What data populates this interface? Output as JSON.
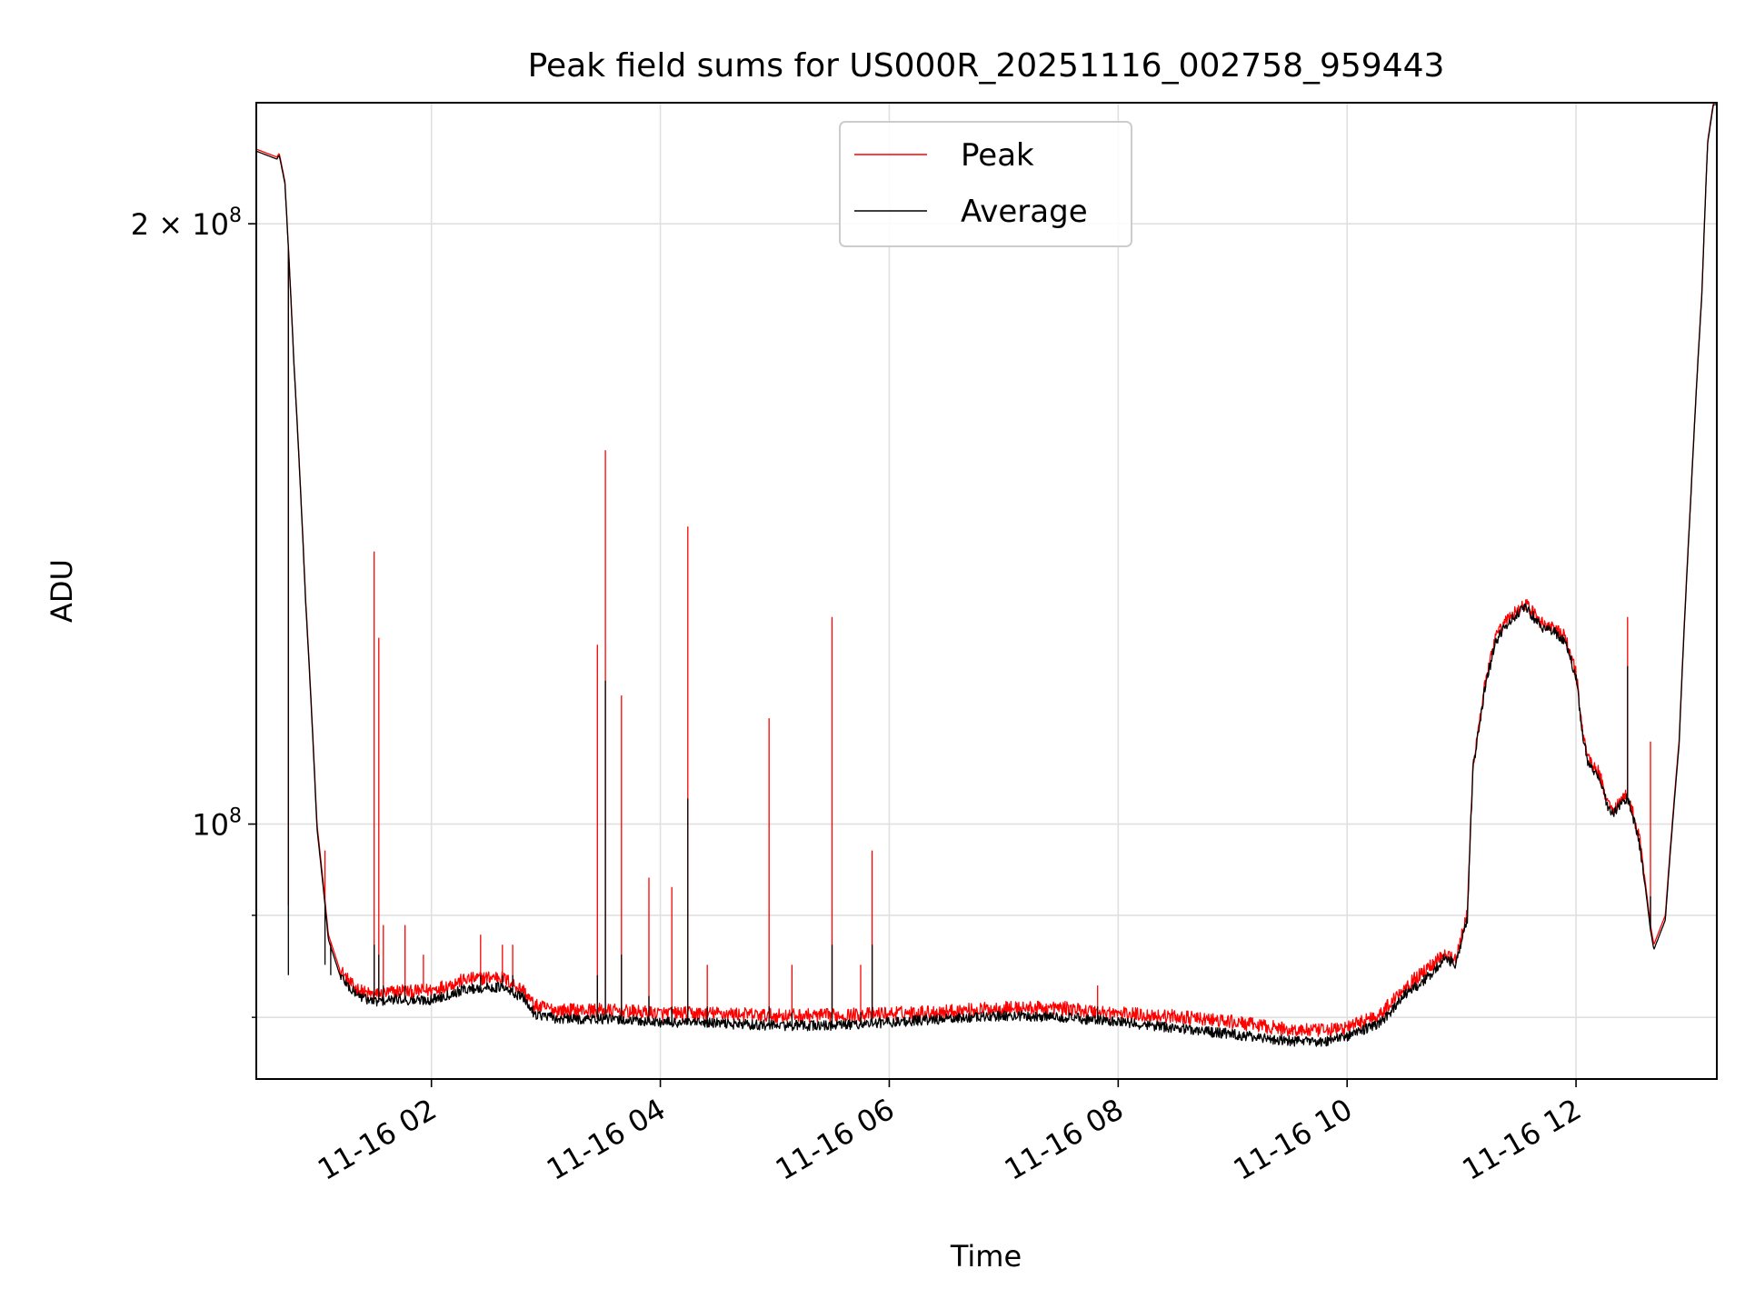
{
  "chart_data": {
    "type": "line",
    "title": "Peak field sums for US000R_20251116_002758_959443",
    "xlabel": "Time",
    "ylabel": "ADU",
    "yscale": "log",
    "x_unit": "hours since 11-16 00:00",
    "xlim": [
      0.47,
      13.23
    ],
    "ylim": [
      74500000.0,
      230000000.0
    ],
    "grid": true,
    "legend_position": "upper center",
    "x_ticks": [
      {
        "value": 2,
        "label": "11-16 02"
      },
      {
        "value": 4,
        "label": "11-16 04"
      },
      {
        "value": 6,
        "label": "11-16 06"
      },
      {
        "value": 8,
        "label": "11-16 08"
      },
      {
        "value": 10,
        "label": "11-16 10"
      },
      {
        "value": 12,
        "label": "11-16 12"
      }
    ],
    "y_major_ticks": [
      {
        "value": 100000000,
        "base": "10",
        "exponent": "8",
        "prefix": ""
      },
      {
        "value": 200000000,
        "base": "10",
        "exponent": "8",
        "prefix": "2 × "
      }
    ],
    "y_minor_ticks": [
      80000000,
      90000000
    ],
    "series": [
      {
        "name": "Peak",
        "color": "#ff0000",
        "x": [
          0.47,
          0.65,
          0.67,
          0.72,
          0.8,
          0.9,
          1.0,
          1.1,
          1.2,
          1.3,
          1.4,
          1.5,
          1.6,
          1.75,
          1.8,
          2.0,
          2.3,
          2.6,
          2.8,
          2.9,
          3.1,
          3.5,
          4.0,
          4.5,
          5.0,
          5.5,
          6.0,
          6.5,
          7.0,
          7.5,
          8.0,
          8.5,
          9.0,
          9.5,
          9.8,
          10.0,
          10.3,
          10.5,
          10.7,
          10.85,
          10.95,
          11.05,
          11.1,
          11.2,
          11.3,
          11.4,
          11.5,
          11.55,
          11.6,
          11.7,
          11.8,
          11.9,
          12.0,
          12.05,
          12.1,
          12.2,
          12.3,
          12.38,
          12.45,
          12.55,
          12.6,
          12.65,
          12.68,
          12.78,
          12.9,
          13.0,
          13.1,
          13.15,
          13.2,
          13.23
        ],
        "y": [
          218000000,
          216000000,
          217000000,
          210000000,
          170000000,
          130000000,
          100000000,
          88000000,
          84500000,
          83000000,
          82300000,
          82000000,
          82200000,
          82500000,
          82300000,
          82500000,
          83500000,
          83800000,
          82500000,
          81000000,
          80600000,
          80600000,
          80300000,
          80300000,
          80100000,
          80100000,
          80300000,
          80500000,
          80800000,
          80800000,
          80300000,
          80000000,
          79500000,
          78800000,
          78700000,
          79000000,
          80300000,
          82800000,
          84500000,
          86200000,
          85500000,
          90000000,
          107000000,
          117000000,
          124000000,
          126500000,
          128000000,
          129000000,
          128000000,
          126000000,
          125500000,
          124000000,
          119000000,
          112000000,
          108000000,
          106000000,
          101500000,
          102500000,
          103500000,
          98500000,
          94000000,
          89000000,
          87000000,
          90000000,
          110000000,
          145000000,
          185000000,
          220000000,
          230000000,
          230000000
        ]
      },
      {
        "name": "Average",
        "color": "#000000",
        "x": [
          0.47,
          0.65,
          0.67,
          0.72,
          0.8,
          0.9,
          1.0,
          1.1,
          1.2,
          1.3,
          1.4,
          1.5,
          1.6,
          1.75,
          1.8,
          2.0,
          2.3,
          2.6,
          2.8,
          2.9,
          3.1,
          3.5,
          4.0,
          4.5,
          5.0,
          5.5,
          6.0,
          6.5,
          7.0,
          7.5,
          8.0,
          8.5,
          9.0,
          9.5,
          9.8,
          10.0,
          10.3,
          10.5,
          10.7,
          10.85,
          10.95,
          11.05,
          11.1,
          11.2,
          11.3,
          11.4,
          11.5,
          11.55,
          11.6,
          11.7,
          11.8,
          11.9,
          12.0,
          12.05,
          12.1,
          12.2,
          12.3,
          12.38,
          12.45,
          12.55,
          12.6,
          12.65,
          12.68,
          12.78,
          12.9,
          13.0,
          13.1,
          13.15,
          13.2,
          13.23
        ],
        "y": [
          217500000,
          215500000,
          216500000,
          209500000,
          169500000,
          129500000,
          99500000,
          87500000,
          84000000,
          82500000,
          81800000,
          81400000,
          81500000,
          81700000,
          81500000,
          81600000,
          82600000,
          82800000,
          81800000,
          80300000,
          79800000,
          79800000,
          79500000,
          79400000,
          79200000,
          79200000,
          79500000,
          79800000,
          80100000,
          80000000,
          79500000,
          79000000,
          78400000,
          77800000,
          77700000,
          78200000,
          79500000,
          82000000,
          83700000,
          85600000,
          85000000,
          89500000,
          106500000,
          116500000,
          123500000,
          126000000,
          127500000,
          128500000,
          127500000,
          125500000,
          125000000,
          123500000,
          118500000,
          111500000,
          107500000,
          105500000,
          101000000,
          102000000,
          103000000,
          98000000,
          93500000,
          88500000,
          86500000,
          89500000,
          109500000,
          144500000,
          184500000,
          219500000,
          229500000,
          229500000
        ]
      }
    ],
    "spikes": [
      {
        "x": 0.75,
        "peak": 91000000,
        "average": 84000000
      },
      {
        "x": 1.07,
        "peak": 97000000,
        "average": 85000000
      },
      {
        "x": 1.12,
        "peak": 86000000,
        "average": 84000000
      },
      {
        "x": 1.5,
        "peak": 137000000,
        "average": 87000000
      },
      {
        "x": 1.54,
        "peak": 124000000,
        "average": 86000000
      },
      {
        "x": 1.58,
        "peak": 89000000,
        "average": 83000000
      },
      {
        "x": 1.77,
        "peak": 89000000,
        "average": 83000000
      },
      {
        "x": 1.93,
        "peak": 86000000,
        "average": 82000000
      },
      {
        "x": 2.43,
        "peak": 88000000,
        "average": 84000000
      },
      {
        "x": 2.62,
        "peak": 87000000,
        "average": 84000000
      },
      {
        "x": 2.71,
        "peak": 87000000,
        "average": 84000000
      },
      {
        "x": 3.45,
        "peak": 123000000,
        "average": 84000000
      },
      {
        "x": 3.52,
        "peak": 154000000,
        "average": 118000000
      },
      {
        "x": 3.66,
        "peak": 116000000,
        "average": 86000000
      },
      {
        "x": 3.9,
        "peak": 94000000,
        "average": 82000000
      },
      {
        "x": 4.1,
        "peak": 93000000,
        "average": 81000000
      },
      {
        "x": 4.24,
        "peak": 141000000,
        "average": 103000000
      },
      {
        "x": 4.41,
        "peak": 85000000,
        "average": 81000000
      },
      {
        "x": 4.95,
        "peak": 113000000,
        "average": 81000000
      },
      {
        "x": 5.15,
        "peak": 85000000,
        "average": 80500000
      },
      {
        "x": 5.5,
        "peak": 127000000,
        "average": 87000000
      },
      {
        "x": 5.75,
        "peak": 85000000,
        "average": 80500000
      },
      {
        "x": 5.85,
        "peak": 97000000,
        "average": 87000000
      },
      {
        "x": 7.82,
        "peak": 83000000,
        "average": 81000000
      },
      {
        "x": 12.45,
        "peak": 127000000,
        "average": 120000000
      },
      {
        "x": 12.65,
        "peak": 110000000,
        "average": 92000000
      }
    ]
  }
}
